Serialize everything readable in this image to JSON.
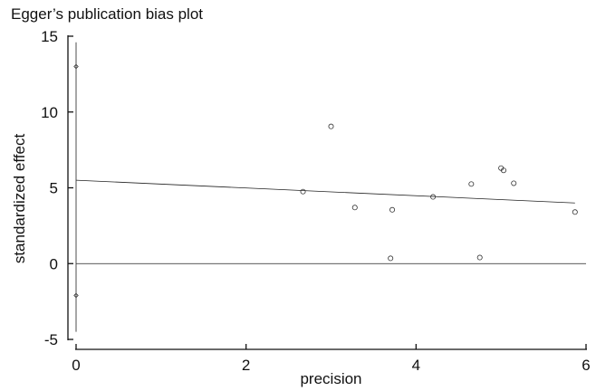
{
  "chart_data": {
    "type": "scatter",
    "title": "Egger’s publication bias plot",
    "xlabel": "precision",
    "ylabel": "standardized effect",
    "xlim": [
      0,
      6
    ],
    "ylim": [
      -5,
      15
    ],
    "xticks": [
      0,
      2,
      4,
      6
    ],
    "yticks": [
      -5,
      0,
      5,
      10,
      15
    ],
    "points": [
      {
        "x": 2.67,
        "y": 4.75
      },
      {
        "x": 3.0,
        "y": 9.05
      },
      {
        "x": 3.28,
        "y": 3.7
      },
      {
        "x": 3.7,
        "y": 0.35
      },
      {
        "x": 3.72,
        "y": 3.55
      },
      {
        "x": 4.2,
        "y": 4.4
      },
      {
        "x": 4.65,
        "y": 5.25
      },
      {
        "x": 4.75,
        "y": 0.4
      },
      {
        "x": 5.0,
        "y": 6.3
      },
      {
        "x": 5.03,
        "y": 6.15
      },
      {
        "x": 5.15,
        "y": 5.3
      },
      {
        "x": 5.87,
        "y": 3.4
      }
    ],
    "intercept": {
      "estimate": 5.5,
      "ci_lower": -4.5,
      "ci_upper": 14.6,
      "ci_marks": [
        13.0,
        -2.1
      ]
    },
    "fit_line": {
      "x": [
        0,
        5.87
      ],
      "y": [
        5.5,
        4.0
      ]
    },
    "reference_line_y": 0,
    "grid": false,
    "legend": "none"
  }
}
